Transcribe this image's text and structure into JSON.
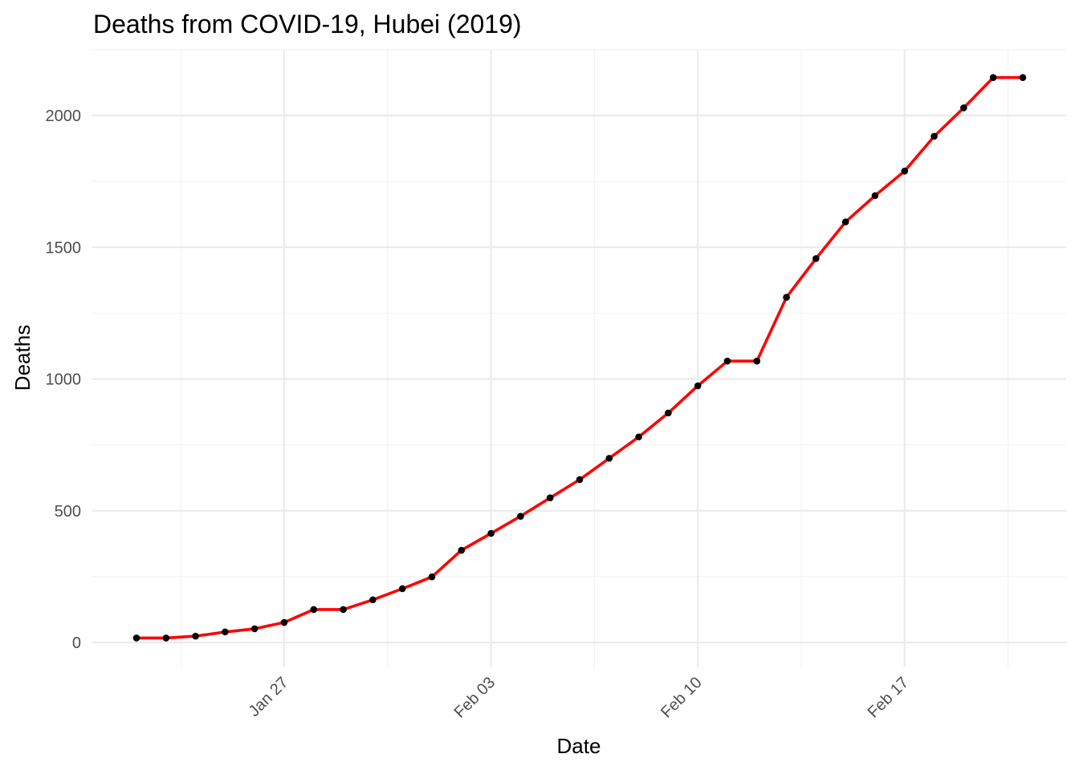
{
  "chart_data": {
    "type": "line",
    "title": "Deaths from COVID-19, Hubei (2019)",
    "xlabel": "Date",
    "ylabel": "Deaths",
    "x_tick_labels": [
      "Jan 27",
      "Feb 03",
      "Feb 10",
      "Feb 17"
    ],
    "y_tick_labels": [
      "0",
      "500",
      "1000",
      "1500",
      "2000"
    ],
    "y_ticks": [
      0,
      500,
      1000,
      1500,
      2000
    ],
    "ylim": [
      -100,
      2250
    ],
    "grid": true,
    "legend": "none",
    "colors": {
      "line": "#ff0000",
      "points": "#000000"
    },
    "x": [
      "Jan 22",
      "Jan 23",
      "Jan 24",
      "Jan 25",
      "Jan 26",
      "Jan 27",
      "Jan 28",
      "Jan 29",
      "Jan 30",
      "Jan 31",
      "Feb 01",
      "Feb 02",
      "Feb 03",
      "Feb 04",
      "Feb 05",
      "Feb 06",
      "Feb 07",
      "Feb 08",
      "Feb 09",
      "Feb 10",
      "Feb 11",
      "Feb 12",
      "Feb 13",
      "Feb 14",
      "Feb 15",
      "Feb 16",
      "Feb 17",
      "Feb 18",
      "Feb 19",
      "Feb 20",
      "Feb 21"
    ],
    "values": [
      17,
      17,
      24,
      40,
      52,
      76,
      125,
      125,
      162,
      204,
      249,
      350,
      414,
      479,
      549,
      618,
      699,
      780,
      871,
      974,
      1068,
      1068,
      1310,
      1457,
      1596,
      1696,
      1789,
      1921,
      2029,
      2144,
      2144
    ]
  }
}
